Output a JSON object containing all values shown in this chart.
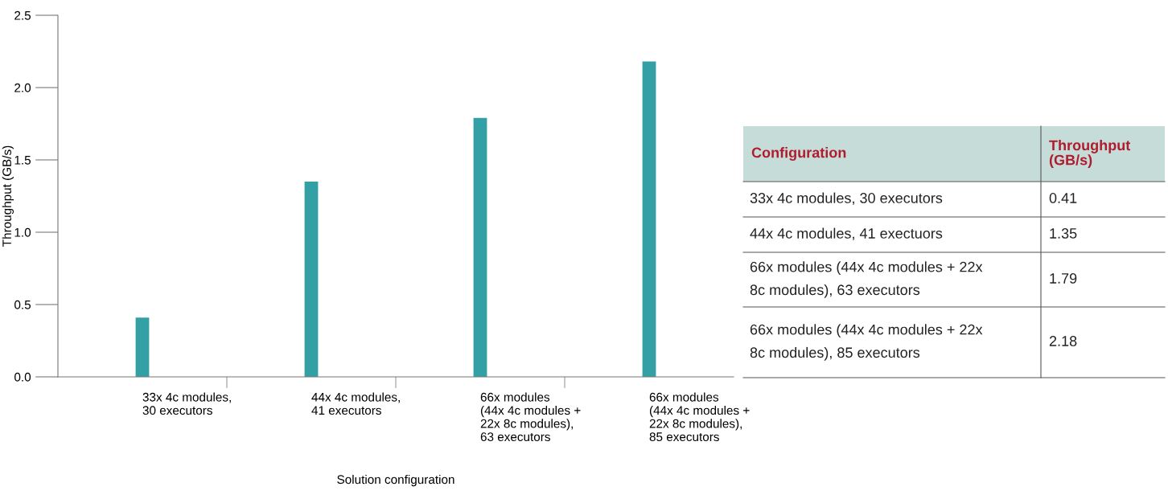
{
  "chart_data": {
    "type": "bar",
    "categories": [
      "33x 4c modules,\n30 executors",
      "44x 4c modules,\n41 executors",
      "66x modules\n(44x 4c modules +\n22x 8c modules),\n63 executors",
      "66x modules\n(44x 4c modules +\n22x 8c modules),\n85 executors"
    ],
    "values": [
      0.41,
      1.35,
      1.79,
      2.18
    ],
    "color": "#33a0a5",
    "xlabel": "Solution configuration",
    "ylabel": "Throughput (GB/s)",
    "ylim": [
      0,
      2.5
    ],
    "yticks": [
      {
        "value": 0,
        "label": "0.0"
      },
      {
        "value": 0.5,
        "label": "0.5"
      },
      {
        "value": 1,
        "label": "1.0"
      },
      {
        "value": 1.5,
        "label": "1.5"
      },
      {
        "value": 2,
        "label": "2.0"
      },
      {
        "value": 2.5,
        "label": "2.5"
      }
    ],
    "grid": false,
    "annotations": [
      "Configuration",
      "Throughput\n(GB/s)",
      "33x 4c modules, 30 executors",
      "0.41",
      "44x 4c modules, 41 exectuors",
      "1.35",
      "66x modules (44x 4c modules + 22x\n8c modules), 63 executors",
      "1.79",
      "66x modules (44x 4c modules + 22x\n8c modules), 85 executors",
      "2.18"
    ]
  }
}
